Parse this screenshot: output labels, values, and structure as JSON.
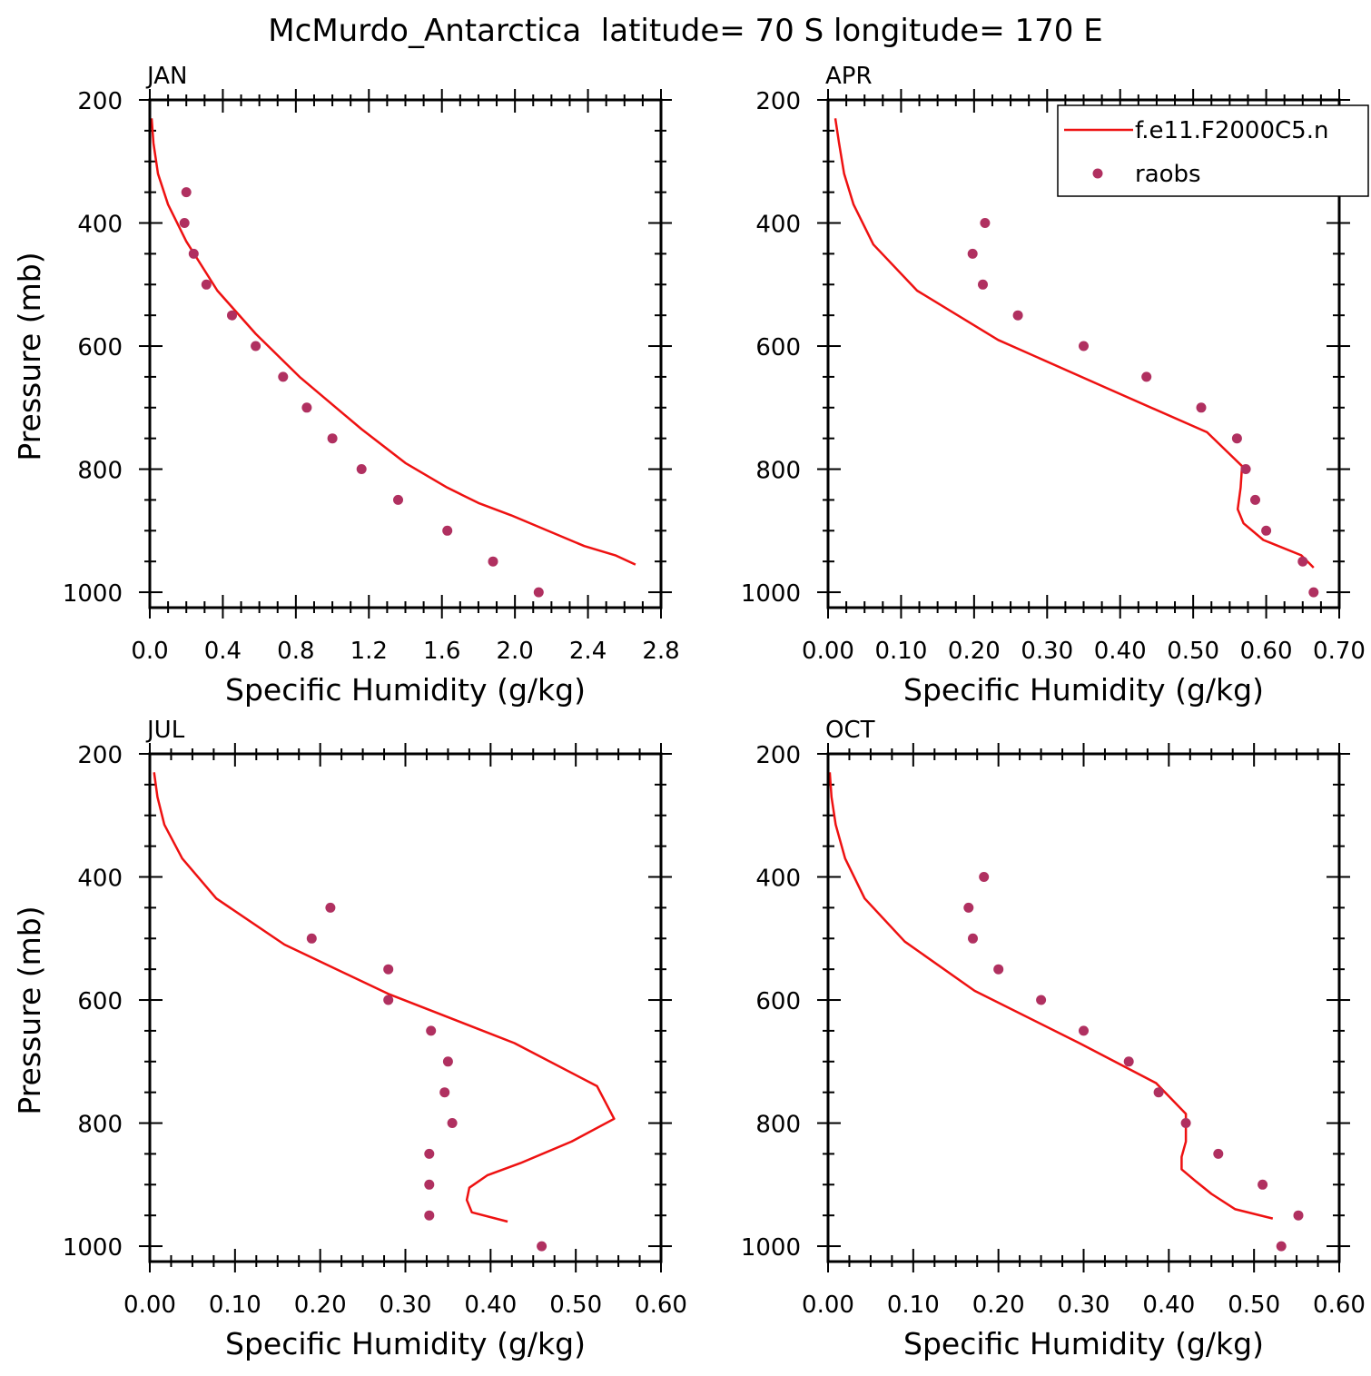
{
  "figure": {
    "title": "McMurdo_Antarctica  latitude= 70 S longitude= 170 E"
  },
  "colors": {
    "model_line": "#ee1111",
    "raobs_marker": "#b03060",
    "frame": "#000000"
  },
  "legend": {
    "entries": [
      {
        "label": "f.e11.F2000C5.n",
        "symbol": "line",
        "color": "#ee1111"
      },
      {
        "label": "raobs",
        "symbol": "marker",
        "color": "#b03060"
      }
    ],
    "location": "APR panel, top-right"
  },
  "chart_data": [
    {
      "type": "line",
      "panel": "JAN",
      "xlabel": "Specific Humidity (g/kg)",
      "ylabel": "Pressure (mb)",
      "xlim": [
        0,
        2.8
      ],
      "ylim": [
        200,
        1025
      ],
      "y_inverted": true,
      "xticks": [
        "0.0",
        "0.4",
        "0.8",
        "1.2",
        "1.6",
        "2.0",
        "2.4",
        "2.8"
      ],
      "yticks": [
        "200",
        "400",
        "600",
        "800",
        "1000"
      ],
      "series": [
        {
          "name": "f.e11.F2000C5.n",
          "kind": "line",
          "x": [
            0.01,
            0.02,
            0.045,
            0.1,
            0.2,
            0.37,
            0.58,
            0.82,
            1.16,
            1.4,
            1.63,
            1.8,
            1.98,
            2.38,
            2.55,
            2.66
          ],
          "y": [
            230,
            270,
            320,
            370,
            430,
            510,
            580,
            650,
            735,
            790,
            830,
            855,
            875,
            925,
            940,
            955
          ]
        },
        {
          "name": "raobs",
          "kind": "scatter",
          "x": [
            0.2,
            0.19,
            0.24,
            0.31,
            0.45,
            0.58,
            0.73,
            0.86,
            1.0,
            1.16,
            1.36,
            1.63,
            1.88,
            2.13
          ],
          "y": [
            350,
            400,
            450,
            500,
            550,
            600,
            650,
            700,
            750,
            800,
            850,
            900,
            950,
            1000
          ]
        }
      ]
    },
    {
      "type": "line",
      "panel": "APR",
      "xlabel": "Specific Humidity (g/kg)",
      "ylabel": "",
      "xlim": [
        0,
        0.7
      ],
      "ylim": [
        200,
        1025
      ],
      "y_inverted": true,
      "xticks": [
        "0.00",
        "0.10",
        "0.20",
        "0.30",
        "0.40",
        "0.50",
        "0.60",
        "0.70"
      ],
      "yticks": [
        "200",
        "400",
        "600",
        "800",
        "1000"
      ],
      "series": [
        {
          "name": "f.e11.F2000C5.n",
          "kind": "line",
          "x": [
            0.01,
            0.015,
            0.022,
            0.035,
            0.062,
            0.122,
            0.233,
            0.385,
            0.519,
            0.567,
            0.565,
            0.561,
            0.569,
            0.596,
            0.648,
            0.665
          ],
          "y": [
            230,
            270,
            320,
            370,
            435,
            510,
            590,
            670,
            740,
            795,
            830,
            865,
            888,
            915,
            940,
            960
          ]
        },
        {
          "name": "raobs",
          "kind": "scatter",
          "x": [
            0.215,
            0.198,
            0.212,
            0.26,
            0.35,
            0.436,
            0.511,
            0.56,
            0.572,
            0.585,
            0.6,
            0.65,
            0.665
          ],
          "y": [
            400,
            450,
            500,
            550,
            600,
            650,
            700,
            750,
            800,
            850,
            900,
            950,
            1000
          ]
        }
      ]
    },
    {
      "type": "line",
      "panel": "JUL",
      "xlabel": "Specific Humidity (g/kg)",
      "ylabel": "Pressure (mb)",
      "xlim": [
        0,
        0.6
      ],
      "ylim": [
        200,
        1025
      ],
      "y_inverted": true,
      "xticks": [
        "0.00",
        "0.10",
        "0.20",
        "0.30",
        "0.40",
        "0.50",
        "0.60"
      ],
      "yticks": [
        "200",
        "400",
        "600",
        "800",
        "1000"
      ],
      "series": [
        {
          "name": "f.e11.F2000C5.n",
          "kind": "line",
          "x": [
            0.005,
            0.009,
            0.017,
            0.038,
            0.078,
            0.158,
            0.28,
            0.428,
            0.525,
            0.545,
            0.495,
            0.435,
            0.396,
            0.375,
            0.372,
            0.378,
            0.42
          ],
          "y": [
            230,
            270,
            315,
            370,
            435,
            510,
            590,
            670,
            740,
            793,
            830,
            865,
            885,
            905,
            925,
            945,
            960
          ]
        },
        {
          "name": "raobs",
          "kind": "scatter",
          "x": [
            0.212,
            0.19,
            0.28,
            0.28,
            0.33,
            0.35,
            0.346,
            0.355,
            0.328,
            0.328,
            0.328,
            0.46
          ],
          "y": [
            450,
            500,
            550,
            600,
            650,
            700,
            750,
            800,
            850,
            900,
            950,
            1000
          ]
        }
      ]
    },
    {
      "type": "line",
      "panel": "OCT",
      "xlabel": "Specific Humidity (g/kg)",
      "ylabel": "",
      "xlim": [
        0,
        0.6
      ],
      "ylim": [
        200,
        1025
      ],
      "y_inverted": true,
      "xticks": [
        "0.00",
        "0.10",
        "0.20",
        "0.30",
        "0.40",
        "0.50",
        "0.60"
      ],
      "yticks": [
        "200",
        "400",
        "600",
        "800",
        "1000"
      ],
      "series": [
        {
          "name": "f.e11.F2000C5.n",
          "kind": "line",
          "x": [
            0.002,
            0.004,
            0.009,
            0.02,
            0.043,
            0.09,
            0.172,
            0.295,
            0.385,
            0.42,
            0.42,
            0.415,
            0.415,
            0.432,
            0.45,
            0.478,
            0.522
          ],
          "y": [
            230,
            270,
            315,
            370,
            435,
            505,
            585,
            670,
            735,
            785,
            830,
            855,
            875,
            895,
            915,
            940,
            955
          ]
        },
        {
          "name": "raobs",
          "kind": "scatter",
          "x": [
            0.183,
            0.165,
            0.17,
            0.2,
            0.25,
            0.3,
            0.353,
            0.388,
            0.42,
            0.458,
            0.51,
            0.552,
            0.532
          ],
          "y": [
            400,
            450,
            500,
            550,
            600,
            650,
            700,
            750,
            800,
            850,
            900,
            950,
            1000
          ]
        }
      ]
    }
  ]
}
